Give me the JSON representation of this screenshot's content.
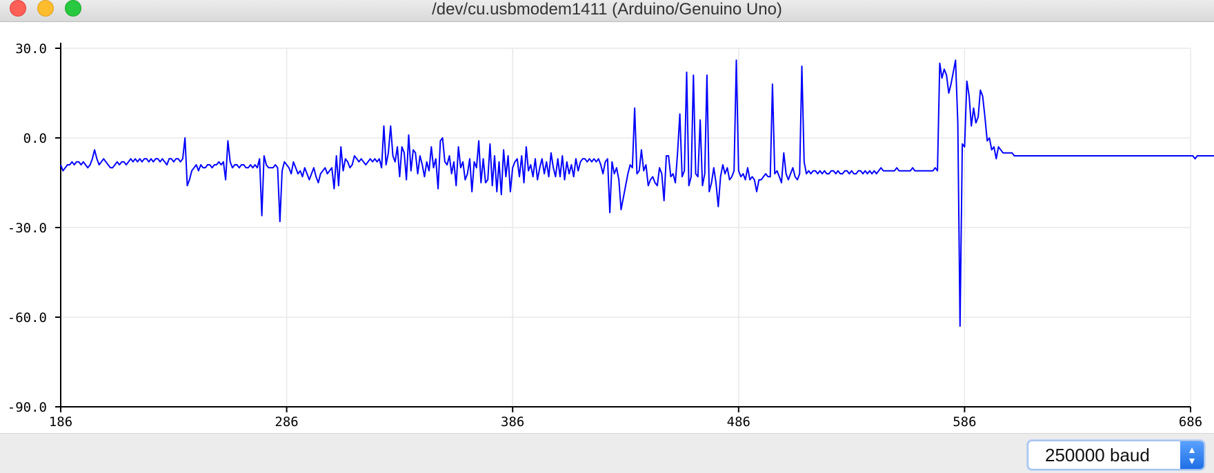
{
  "window": {
    "title": "/dev/cu.usbmodem1411 (Arduino/Genuino Uno)"
  },
  "colors": {
    "series": "#0000ff",
    "grid": "#e8e8e8",
    "axis": "#000000"
  },
  "chart_data": {
    "type": "line",
    "title": "",
    "xlabel": "",
    "ylabel": "",
    "xlim": [
      186,
      686
    ],
    "ylim": [
      -90,
      30
    ],
    "grid": true,
    "x_ticks": [
      "186",
      "286",
      "386",
      "486",
      "586",
      "686"
    ],
    "y_ticks": [
      "30.0",
      "0.0",
      "-30.0",
      "-60.0",
      "-90.0"
    ],
    "series": [
      {
        "name": "serial",
        "x_start": 186,
        "values": [
          -9,
          -11,
          -10,
          -9,
          -9,
          -8,
          -9,
          -8,
          -8,
          -9,
          -8,
          -9,
          -10,
          -9,
          -7,
          -4,
          -7,
          -9,
          -8,
          -7,
          -8,
          -9,
          -10,
          -10,
          -9,
          -8,
          -9,
          -8,
          -8,
          -9,
          -8,
          -7,
          -8,
          -7,
          -8,
          -7,
          -8,
          -7,
          -7,
          -8,
          -7,
          -8,
          -7,
          -7,
          -8,
          -7,
          -8,
          -9,
          -7,
          -7,
          -8,
          -7,
          -7,
          -8,
          -7,
          0,
          -16,
          -14,
          -11,
          -10,
          -9,
          -11,
          -9,
          -10,
          -10,
          -9,
          -9,
          -10,
          -9,
          -9,
          -8,
          -9,
          -8,
          -14,
          -1,
          -8,
          -10,
          -9,
          -9,
          -10,
          -9,
          -9,
          -10,
          -10,
          -9,
          -10,
          -9,
          -10,
          -7,
          -26,
          -6,
          -9,
          -10,
          -10,
          -10,
          -9,
          -10,
          -28,
          -11,
          -8,
          -9,
          -10,
          -12,
          -8,
          -10,
          -12,
          -11,
          -13,
          -10,
          -12,
          -14,
          -12,
          -10,
          -13,
          -15,
          -12,
          -11,
          -10,
          -12,
          -11,
          -10,
          -17,
          -6,
          -16,
          -3,
          -11,
          -7,
          -8,
          -10,
          -9,
          -6,
          -7,
          -8,
          -7,
          -8,
          -9,
          -8,
          -7,
          -8,
          -7,
          -8,
          -7,
          -10,
          4,
          -9,
          -5,
          4,
          -6,
          -8,
          -3,
          -13,
          -3,
          -5,
          -14,
          1,
          -11,
          -4,
          -5,
          -12,
          -6,
          -9,
          -13,
          -8,
          -11,
          -3,
          -10,
          -7,
          -17,
          -1,
          0,
          -8,
          -9,
          -6,
          -12,
          -8,
          -16,
          -3,
          -10,
          -8,
          -14,
          -12,
          -7,
          -18,
          -8,
          -10,
          -1,
          -15,
          -7,
          -15,
          -14,
          -2,
          -16,
          -6,
          -18,
          -8,
          -19,
          -4,
          -13,
          -6,
          -18,
          -10,
          -8,
          -7,
          -13,
          -6,
          -15,
          -3,
          -11,
          -9,
          -13,
          -7,
          -14,
          -10,
          -7,
          -12,
          -8,
          -13,
          -5,
          -10,
          -13,
          -7,
          -13,
          -6,
          -14,
          -8,
          -12,
          -9,
          -13,
          -7,
          -11,
          -8,
          -7,
          -7,
          -8,
          -7,
          -8,
          -7,
          -8,
          -7,
          -9,
          -12,
          -8,
          -7,
          -25,
          -8,
          -12,
          -10,
          -14,
          -24,
          -20,
          -16,
          -12,
          -9,
          -10,
          10,
          -12,
          -11,
          -4,
          -11,
          -9,
          -16,
          -14,
          -13,
          -15,
          -16,
          -10,
          -12,
          -21,
          -6,
          -6,
          -13,
          -12,
          -15,
          -5,
          8,
          -13,
          -11,
          22,
          -16,
          -13,
          21,
          -12,
          -13,
          6,
          -16,
          -12,
          21,
          -18,
          -15,
          -10,
          -15,
          -23,
          -13,
          -9,
          -12,
          -10,
          -14,
          -13,
          -11,
          26,
          -11,
          -13,
          -12,
          -14,
          -10,
          -14,
          -13,
          -14,
          -18,
          -14,
          -14,
          -13,
          -12,
          -13,
          -13,
          18,
          -12,
          -11,
          -13,
          -15,
          -5,
          -12,
          -14,
          -12,
          -10,
          -13,
          -14,
          -12,
          24,
          -8,
          -12,
          -11,
          -12,
          -11,
          -11,
          -12,
          -11,
          -12,
          -11,
          -12,
          -12,
          -11,
          -11,
          -12,
          -11,
          -12,
          -12,
          -11,
          -11,
          -12,
          -11,
          -12,
          -12,
          -11,
          -11,
          -12,
          -11,
          -12,
          -11,
          -12,
          -11,
          -12,
          -11,
          -10,
          -11,
          -11,
          -11,
          -11,
          -11,
          -11,
          -10,
          -11,
          -11,
          -11,
          -11,
          -11,
          -11,
          -10,
          -11,
          -11,
          -11,
          -11,
          -11,
          -11,
          -11,
          -11,
          -11,
          -10,
          -11,
          25,
          20,
          23,
          21,
          15,
          18,
          22,
          26,
          5,
          -63,
          -2,
          -3,
          19,
          14,
          4,
          10,
          5,
          7,
          16,
          14,
          7,
          -1,
          0,
          -4,
          -3,
          -7,
          -3,
          -4,
          -5,
          -5,
          -5,
          -5,
          -5,
          -6,
          -6,
          -6,
          -6,
          -6,
          -6,
          -6,
          -6,
          -6,
          -6,
          -6,
          -6,
          -6,
          -6,
          -6,
          -6,
          -6,
          -6,
          -6,
          -6,
          -6,
          -6,
          -6,
          -6,
          -6,
          -6,
          -6,
          -6,
          -6,
          -6,
          -6,
          -6,
          -6,
          -6,
          -6,
          -6,
          -6,
          -6,
          -6,
          -6,
          -6,
          -6,
          -6,
          -6,
          -6,
          -6,
          -6,
          -6,
          -6,
          -6,
          -6,
          -6,
          -6,
          -6,
          -6,
          -6,
          -6,
          -6,
          -6,
          -6,
          -6,
          -6,
          -6,
          -6,
          -6,
          -6,
          -6,
          -6,
          -6,
          -6,
          -6,
          -6,
          -6,
          -6,
          -6,
          -6,
          -6,
          -6,
          -6,
          -6,
          -7,
          -6,
          -6,
          -6,
          -6,
          -6,
          -6,
          -6,
          -6,
          -6,
          -6,
          -6,
          -6,
          -6,
          -6,
          -6,
          -6,
          -6,
          -6,
          -6,
          -7,
          -6,
          -6,
          -6,
          -6,
          -6,
          -6,
          -6
        ]
      }
    ]
  },
  "footer": {
    "baud_rate": "250000 baud",
    "stepper_icon": "up-down-chevron-icon"
  }
}
